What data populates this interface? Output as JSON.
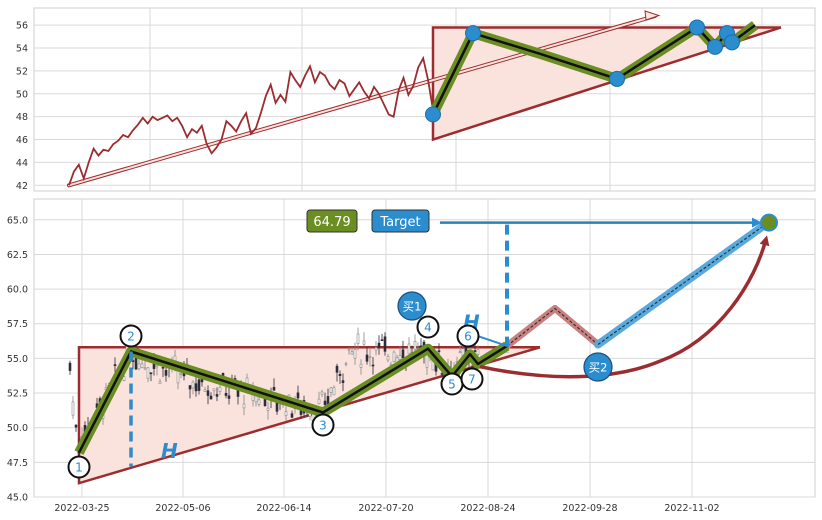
{
  "chart_data": [
    {
      "type": "line",
      "panel": "upper",
      "ylim": [
        41.5,
        57.5
      ],
      "yticks": [
        42,
        44,
        46,
        48,
        50,
        52,
        54,
        56
      ],
      "series": [
        {
          "style": "close-line",
          "color": "#9b2d30",
          "y": [
            42.0,
            43.2,
            43.8,
            42.6,
            44.0,
            45.2,
            44.6,
            45.1,
            45.0,
            45.6,
            45.9,
            46.4,
            46.2,
            46.8,
            47.3,
            47.9,
            47.4,
            48.0,
            47.7,
            47.9,
            48.1,
            47.6,
            47.9,
            47.2,
            46.2,
            46.9,
            46.6,
            47.2,
            45.6,
            44.8,
            45.3,
            46.0,
            47.6,
            47.2,
            46.7,
            47.6,
            48.3,
            46.5,
            47.0,
            48.3,
            49.8,
            50.8,
            49.2,
            49.9,
            49.3,
            51.9,
            51.2,
            50.6,
            51.6,
            52.4,
            51.0,
            51.9,
            51.6,
            50.8,
            50.4,
            51.2,
            50.9,
            49.8,
            50.4,
            51.0,
            50.2,
            49.6,
            50.6,
            50.0,
            49.1,
            48.2,
            48.0,
            50.3,
            51.4,
            49.9,
            50.7,
            52.3,
            53.1,
            51.2,
            48.6
          ]
        },
        {
          "style": "overlay-path",
          "y": [
            48.2,
            55.3,
            53.5,
            51.3,
            55.8,
            54.1,
            55.3,
            54.5,
            56.0
          ]
        }
      ],
      "points": [
        48.2,
        55.3,
        51.3,
        55.8,
        54.1,
        55.3,
        54.5
      ],
      "triangle": {
        "top": 55.8,
        "bottom": 46.0,
        "rising_line_end": 55.8
      },
      "arrow": {
        "from": 42.0,
        "to": 56.8
      }
    },
    {
      "type": "candlestick",
      "panel": "lower",
      "ylim": [
        45.0,
        66.5
      ],
      "yticks": [
        "45.0",
        "47.5",
        "50.0",
        "52.5",
        "55.0",
        "57.5",
        "60.0",
        "62.5",
        "65.0"
      ],
      "x_ticks": [
        "2022-03-25",
        "2022-05-06",
        "2022-06-14",
        "2022-07-20",
        "2022-08-24",
        "2022-09-28",
        "2022-11-02"
      ],
      "triangle": {
        "top": 55.8,
        "bottom": 46.0
      },
      "pattern_points": [
        {
          "label": "1",
          "y": 47.0
        },
        {
          "label": "2",
          "y": 55.5
        },
        {
          "label": "3",
          "y": 51.1
        },
        {
          "label": "4",
          "y": 55.7
        },
        {
          "label": "5",
          "y": 53.7
        },
        {
          "label": "6",
          "y": 55.6
        },
        {
          "label": "7",
          "y": 54.3
        }
      ],
      "buy_points": [
        {
          "label": "买1",
          "y": 55.9
        },
        {
          "label": "买2",
          "y": 54.2
        }
      ],
      "projection": {
        "peak": 58.6,
        "valley": 56.0,
        "target_y": 64.8
      },
      "height_label": "H",
      "value_badge": "64.79",
      "target_label": "Target"
    }
  ],
  "colors": {
    "price_line": "#9b2d30",
    "pattern_olive": "#6b8e23",
    "triangle_fill": "#fbe3dd",
    "marker_blue": "#2b8cce",
    "grid": "#d9d9d9"
  }
}
